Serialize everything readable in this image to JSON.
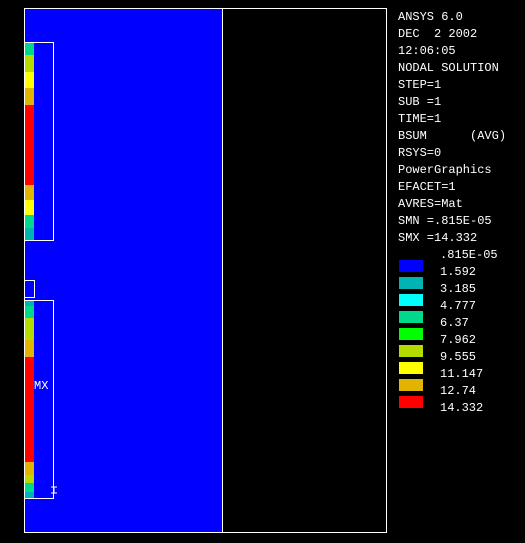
{
  "header": {
    "lines": [
      "ANSYS 6.0",
      "DEC  2 2002",
      "12:06:05",
      "NODAL SOLUTION",
      "STEP=1",
      "SUB =1",
      "TIME=1",
      "BSUM      (AVG)",
      "RSYS=0",
      "PowerGraphics",
      "EFACET=1",
      "AVRES=Mat",
      "SMN =.815E-05",
      "SMX =14.332"
    ]
  },
  "legend": {
    "min_label": ".815E-05",
    "levels": [
      {
        "color": "#0000ff",
        "label": "1.592"
      },
      {
        "color": "#00b4b4",
        "label": "3.185"
      },
      {
        "color": "#00ffff",
        "label": "4.777"
      },
      {
        "color": "#00d88c",
        "label": "6.37"
      },
      {
        "color": "#00ff00",
        "label": "7.962"
      },
      {
        "color": "#b4dc00",
        "label": "9.555"
      },
      {
        "color": "#ffff00",
        "label": "11.147"
      },
      {
        "color": "#e0b400",
        "label": "12.74"
      },
      {
        "color": "#ff0000",
        "label": "14.332"
      }
    ]
  },
  "plot": {
    "marker_label": "MX"
  }
}
